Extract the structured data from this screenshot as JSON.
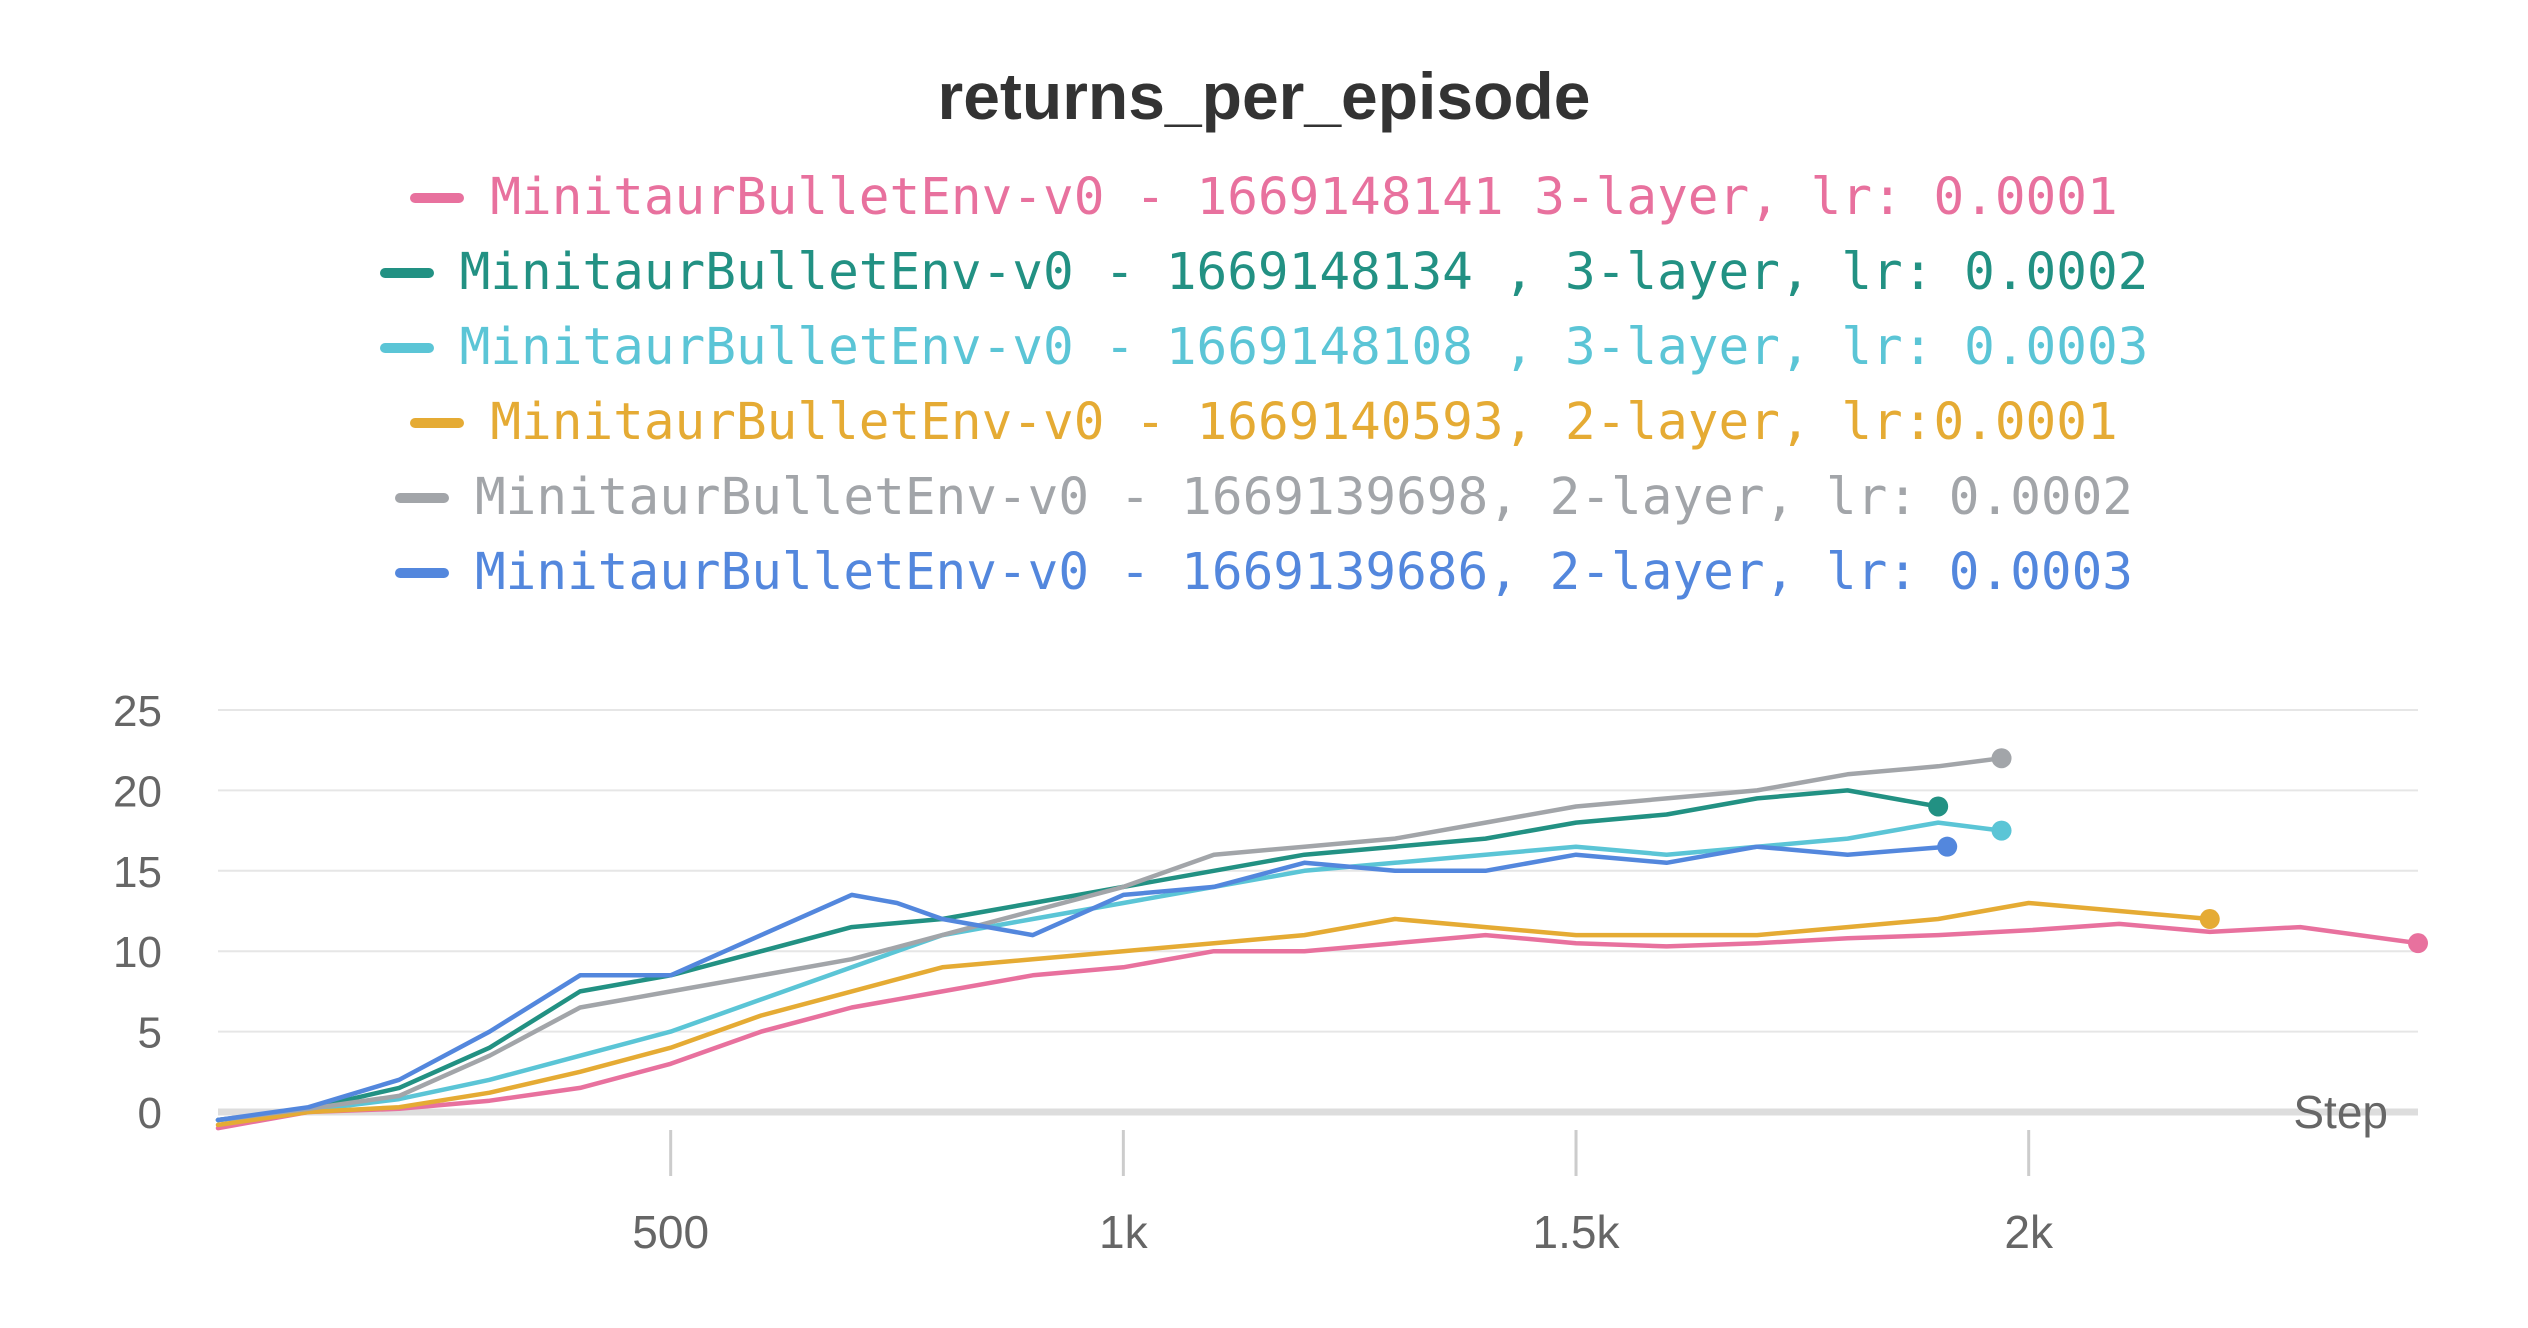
{
  "chart_data": {
    "type": "line",
    "title": "returns_per_episode",
    "xlabel": "Step",
    "ylabel": "",
    "xlim": [
      0,
      2430
    ],
    "ylim": [
      -2,
      27
    ],
    "x_ticks": [
      500,
      1000,
      1500,
      2000
    ],
    "x_tick_labels": [
      "500",
      "1k",
      "1.5k",
      "2k"
    ],
    "y_ticks": [
      0,
      5,
      10,
      15,
      20,
      25
    ],
    "y_tick_labels": [
      "0",
      "5",
      "10",
      "15",
      "20",
      "25"
    ],
    "grid": true,
    "legend_position": "top-center",
    "series": [
      {
        "name": "MinitaurBulletEnv-v0 - 1669148141 3-layer, lr: 0.0001",
        "color": "#e8719e",
        "x": [
          0,
          100,
          200,
          300,
          400,
          500,
          600,
          700,
          800,
          900,
          1000,
          1100,
          1200,
          1300,
          1400,
          1500,
          1600,
          1700,
          1800,
          1900,
          2000,
          2100,
          2200,
          2300,
          2430
        ],
        "y": [
          -1,
          0,
          0.2,
          0.7,
          1.5,
          3,
          5,
          6.5,
          7.5,
          8.5,
          9,
          10,
          10,
          10.5,
          11,
          10.5,
          10.3,
          10.5,
          10.8,
          11,
          11.3,
          11.7,
          11.2,
          11.5,
          10.5
        ]
      },
      {
        "name": "MinitaurBulletEnv-v0 - 1669148134 , 3-layer, lr: 0.0002",
        "color": "#229183",
        "x": [
          0,
          100,
          200,
          300,
          400,
          500,
          600,
          700,
          800,
          900,
          1000,
          1100,
          1200,
          1300,
          1400,
          1500,
          1600,
          1700,
          1800,
          1900
        ],
        "y": [
          -0.5,
          0.2,
          1.5,
          4,
          7.5,
          8.5,
          10,
          11.5,
          12,
          13,
          14,
          15,
          16,
          16.5,
          17,
          18,
          18.5,
          19.5,
          20,
          19
        ]
      },
      {
        "name": "MinitaurBulletEnv-v0 - 1669148108 , 3-layer, lr: 0.0003",
        "color": "#5bc5d6",
        "x": [
          0,
          100,
          200,
          300,
          400,
          500,
          600,
          700,
          800,
          900,
          1000,
          1100,
          1200,
          1300,
          1400,
          1500,
          1600,
          1700,
          1800,
          1900,
          1970
        ],
        "y": [
          -0.5,
          0.1,
          0.8,
          2,
          3.5,
          5,
          7,
          9,
          11,
          12,
          13,
          14,
          15,
          15.5,
          16,
          16.5,
          16,
          16.5,
          17,
          18,
          17.5
        ]
      },
      {
        "name": "MinitaurBulletEnv-v0 - 1669140593, 2-layer, lr:0.0001",
        "color": "#e5ab34",
        "x": [
          0,
          100,
          200,
          300,
          400,
          500,
          600,
          700,
          800,
          900,
          1000,
          1100,
          1200,
          1300,
          1400,
          1500,
          1600,
          1700,
          1800,
          1900,
          2000,
          2100,
          2200
        ],
        "y": [
          -0.8,
          0,
          0.3,
          1.2,
          2.5,
          4,
          6,
          7.5,
          9,
          9.5,
          10,
          10.5,
          11,
          12,
          11.5,
          11,
          11,
          11,
          11.5,
          12,
          13,
          12.5,
          12
        ]
      },
      {
        "name": "MinitaurBulletEnv-v0 - 1669139698, 2-layer, lr: 0.0002",
        "color": "#a2a5a9",
        "x": [
          0,
          100,
          200,
          300,
          400,
          500,
          600,
          700,
          800,
          900,
          1000,
          1100,
          1200,
          1300,
          1400,
          1500,
          1600,
          1700,
          1800,
          1900,
          1970
        ],
        "y": [
          -0.5,
          0.2,
          1,
          3.5,
          6.5,
          7.5,
          8.5,
          9.5,
          11,
          12.5,
          14,
          16,
          16.5,
          17,
          18,
          19,
          19.5,
          20,
          21,
          21.5,
          22
        ]
      },
      {
        "name": "MinitaurBulletEnv-v0 - 1669139686, 2-layer, lr: 0.0003",
        "color": "#5387dd",
        "x": [
          0,
          100,
          200,
          300,
          400,
          450,
          500,
          600,
          700,
          750,
          800,
          900,
          1000,
          1100,
          1200,
          1300,
          1400,
          1500,
          1600,
          1700,
          1800,
          1910
        ],
        "y": [
          -0.5,
          0.3,
          2,
          5,
          8.5,
          8.5,
          8.5,
          11,
          13.5,
          13,
          12,
          11,
          13.5,
          14,
          15.5,
          15,
          15,
          16,
          15.5,
          16.5,
          16,
          16.5
        ]
      }
    ]
  }
}
